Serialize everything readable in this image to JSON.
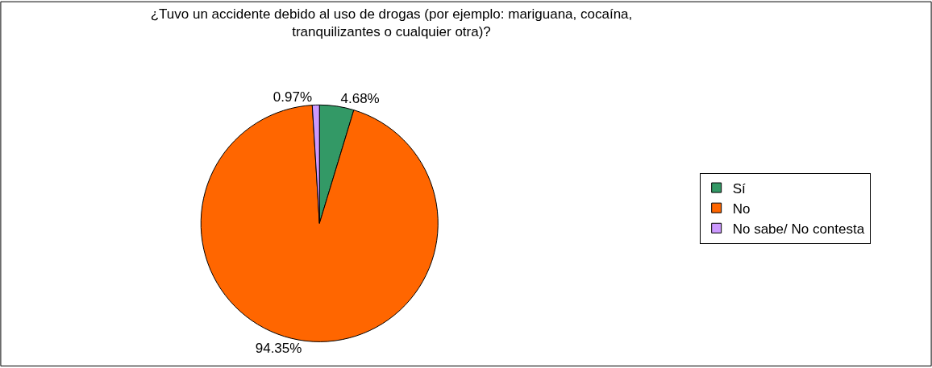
{
  "chart_data": {
    "type": "pie",
    "title": "¿Tuvo un accidente debido al uso de drogas (por ejemplo: mariguana, cocaína, tranquilizantes o cualquier otra)?",
    "categories": [
      "Sí",
      "No",
      "No sabe/ No contesta"
    ],
    "values": [
      4.68,
      94.35,
      0.97
    ],
    "colors": [
      "#339966",
      "#ff6600",
      "#cc99ff"
    ],
    "value_labels": [
      "4.68%",
      "94.35%",
      "0.97%"
    ],
    "legend": "right"
  }
}
